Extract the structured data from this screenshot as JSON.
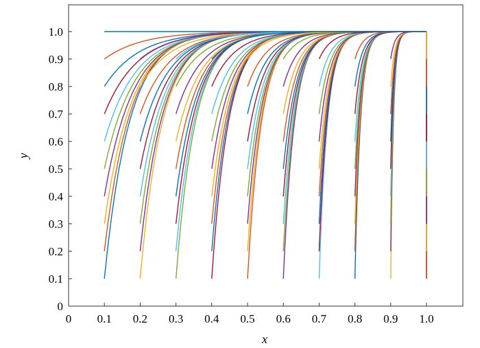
{
  "chart_data": {
    "type": "line",
    "title": "",
    "xlabel": "x",
    "ylabel": "y",
    "xlim": [
      0,
      1.1
    ],
    "ylim": [
      0,
      1.1
    ],
    "x_ticks": [
      "0",
      "0.1",
      "0.2",
      "0.3",
      "0.4",
      "0.5",
      "0.6",
      "0.7",
      "0.8",
      "0.9",
      "1.0"
    ],
    "y_ticks": [
      "0",
      "0.1",
      "0.2",
      "0.3",
      "0.4",
      "0.5",
      "0.6",
      "0.7",
      "0.8",
      "0.9",
      "1.0"
    ],
    "grid": false,
    "legend": "none",
    "colors": [
      "#0072BD",
      "#D95319",
      "#EDB120",
      "#7E2F8E",
      "#77AC30",
      "#4DBEEE",
      "#A2142F"
    ],
    "curve_family": {
      "description": "trajectories starting at (x0, y0) for x0 in 0.1..0.9 step 0.1 and y0 in 0.1..0.9 step 0.1, each rising steeply to y = 1.0 at x = 1.0",
      "x_start": [
        0.1,
        0.2,
        0.3,
        0.4,
        0.5,
        0.6,
        0.7,
        0.8,
        0.9
      ],
      "y_start": [
        0.1,
        0.2,
        0.3,
        0.4,
        0.5,
        0.6,
        0.7,
        0.8,
        0.9
      ],
      "x_end": 1.0,
      "y_end": 1.0
    },
    "reference_lines": [
      {
        "from": [
          0.1,
          1.0
        ],
        "to": [
          1.0,
          1.0
        ]
      },
      {
        "from": [
          1.0,
          0.1
        ],
        "to": [
          1.0,
          1.0
        ]
      }
    ]
  }
}
